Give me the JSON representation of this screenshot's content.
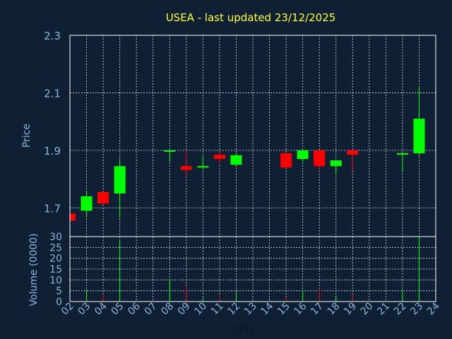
{
  "chart_data": {
    "type": "candlestick",
    "title": "USEA - last updated 23/12/2025",
    "xlabel": "Day",
    "price_panel": {
      "ylabel": "Price",
      "ylim": [
        1.6,
        2.3
      ],
      "yticks": [
        "2.3",
        "2.1",
        "1.9",
        "1.7"
      ],
      "grid": true
    },
    "volume_panel": {
      "ylabel": "Volume (0000)",
      "ylim": [
        0,
        30
      ],
      "yticks": [
        "30",
        "25",
        "20",
        "15",
        "10",
        "5",
        "0"
      ],
      "grid": true
    },
    "x_ticks": [
      "02",
      "03",
      "04",
      "05",
      "06",
      "07",
      "08",
      "09",
      "10",
      "11",
      "12",
      "13",
      "14",
      "15",
      "16",
      "17",
      "18",
      "19",
      "20",
      "21",
      "22",
      "23",
      "24"
    ],
    "colors": {
      "up": "#00ff00",
      "down": "#ff0000",
      "grid": "#ffffff",
      "background": "#0f2035",
      "text": "#8fb3d9",
      "title": "#ffff33"
    },
    "candles": [
      {
        "day": 2,
        "open": 1.68,
        "high": 1.68,
        "low": 1.655,
        "close": 1.655,
        "volume": 0.3
      },
      {
        "day": 3,
        "open": 1.69,
        "high": 1.76,
        "low": 1.67,
        "close": 1.74,
        "volume": 5.5
      },
      {
        "day": 4,
        "open": 1.755,
        "high": 1.755,
        "low": 1.71,
        "close": 1.715,
        "volume": 3.0
      },
      {
        "day": 5,
        "open": 1.75,
        "high": 1.87,
        "low": 1.665,
        "close": 1.845,
        "volume": 28.0
      },
      {
        "day": 8,
        "open": 1.895,
        "high": 1.9,
        "low": 1.86,
        "close": 1.9,
        "volume": 10.5
      },
      {
        "day": 9,
        "open": 1.845,
        "high": 1.9,
        "low": 1.81,
        "close": 1.832,
        "volume": 7.0
      },
      {
        "day": 10,
        "open": 1.84,
        "high": 1.88,
        "low": 1.838,
        "close": 1.845,
        "volume": 1.8
      },
      {
        "day": 11,
        "open": 1.885,
        "high": 1.895,
        "low": 1.85,
        "close": 1.87,
        "volume": 2.8
      },
      {
        "day": 12,
        "open": 1.85,
        "high": 1.89,
        "low": 1.848,
        "close": 1.883,
        "volume": 4.5
      },
      {
        "day": 15,
        "open": 1.89,
        "high": 1.89,
        "low": 1.84,
        "close": 1.84,
        "volume": 1.8
      },
      {
        "day": 16,
        "open": 1.87,
        "high": 1.9,
        "low": 1.86,
        "close": 1.9,
        "volume": 5.0
      },
      {
        "day": 17,
        "open": 1.9,
        "high": 1.9,
        "low": 1.83,
        "close": 1.845,
        "volume": 5.5
      },
      {
        "day": 18,
        "open": 1.845,
        "high": 1.865,
        "low": 1.815,
        "close": 1.865,
        "volume": 2.2
      },
      {
        "day": 19,
        "open": 1.9,
        "high": 1.9,
        "low": 1.83,
        "close": 1.885,
        "volume": 3.5
      },
      {
        "day": 22,
        "open": 1.885,
        "high": 1.892,
        "low": 1.825,
        "close": 1.89,
        "volume": 5.5
      },
      {
        "day": 23,
        "open": 1.89,
        "high": 2.12,
        "low": 1.88,
        "close": 2.01,
        "volume": 30.0
      }
    ]
  }
}
